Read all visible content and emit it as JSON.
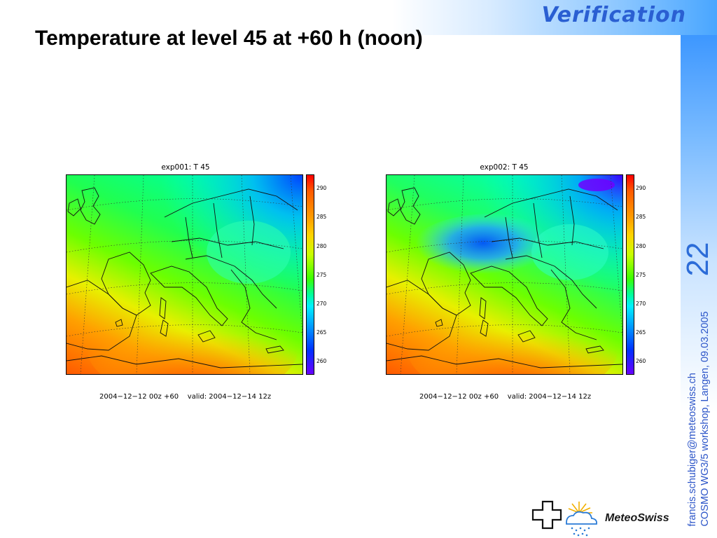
{
  "header": {
    "section_label": "Verification"
  },
  "slide": {
    "title": "Temperature at level 45 at +60 h (noon)",
    "page_number": "22"
  },
  "footer": {
    "email": "francis.schubiger@meteoswiss.ch",
    "event": "COSMO WG3/5 workshop, Langen, 09.03.2005"
  },
  "logo": {
    "name": "MeteoSwiss"
  },
  "panels": [
    {
      "title": "exp001: T 45",
      "caption": "2004−12−12 00z +60    valid: 2004−12−14 12z"
    },
    {
      "title": "exp002: T 45",
      "caption": "2004−12−12 00z +60    valid: 2004−12−14 12z"
    }
  ],
  "colorbar": {
    "ticks": [
      "290",
      "285",
      "280",
      "275",
      "270",
      "265",
      "260"
    ],
    "colors": [
      "#ff0000",
      "#ffa000",
      "#c8ff00",
      "#3cff00",
      "#00f0ff",
      "#0030ff",
      "#6a00ff"
    ]
  }
}
